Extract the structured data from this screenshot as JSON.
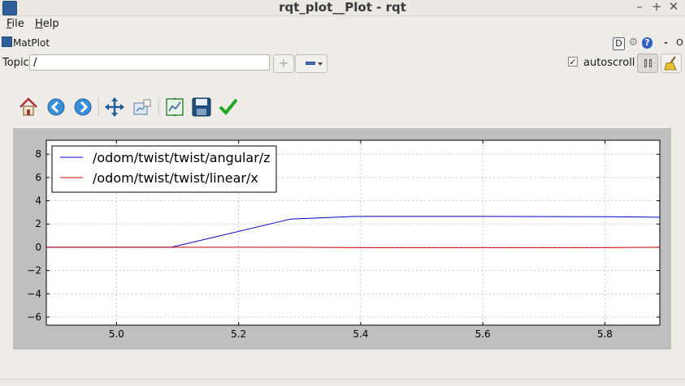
{
  "window": {
    "title": "rqt_plot__Plot - rqt",
    "minimize_glyph": "–",
    "maximize_glyph": "+",
    "close_glyph": "✕"
  },
  "menu": {
    "file_mnemonic": "F",
    "file_rest": "ile",
    "help_mnemonic": "H",
    "help_rest": "elp"
  },
  "dock": {
    "title": "MatPlot",
    "btn_d": "D",
    "btn_minus": "-",
    "btn_o": "O"
  },
  "controls": {
    "topic_label": "Topic",
    "topic_value": "/",
    "add_glyph": "+",
    "autoscroll_checked": true,
    "autoscroll_check_glyph": "✓",
    "autoscroll_label": "autoscroll"
  },
  "toolbar_icons": [
    "home-icon",
    "back-arrow-icon",
    "forward-arrow-icon",
    "pan-icon",
    "configure-subplots-icon",
    "edit-axis-icon",
    "save-icon",
    "apply-checkmark-icon"
  ],
  "colors": {
    "series_angular": "#0000cc",
    "series_linear": "#cc0000",
    "plot_background": "#bfbfbf",
    "window_background": "#efebe7"
  },
  "chart_data": {
    "type": "line",
    "title": "",
    "xlabel": "",
    "ylabel": "",
    "xlim": [
      4.885,
      5.89
    ],
    "ylim": [
      -6.7,
      9.2
    ],
    "xticks": [
      "5.0",
      "5.2",
      "5.4",
      "5.6",
      "5.8"
    ],
    "xtick_values": [
      5.0,
      5.2,
      5.4,
      5.6,
      5.8
    ],
    "yticks": [
      "8",
      "6",
      "4",
      "2",
      "0",
      "−2",
      "−4",
      "−6"
    ],
    "ytick_values": [
      8,
      6,
      4,
      2,
      0,
      -2,
      -4,
      -6
    ],
    "grid": true,
    "legend_position": "top-left",
    "series": [
      {
        "name": "/odom/twist/twist/angular/z",
        "color": "#0000cc",
        "x": [
          4.885,
          5.09,
          5.285,
          5.39,
          5.6,
          5.8,
          5.89
        ],
        "y": [
          0.0,
          0.0,
          2.42,
          2.65,
          2.65,
          2.63,
          2.58
        ]
      },
      {
        "name": "/odom/twist/twist/linear/x",
        "color": "#cc0000",
        "x": [
          4.885,
          5.1,
          5.3,
          5.4,
          5.6,
          5.8,
          5.89
        ],
        "y": [
          0.0,
          0.0,
          0.0,
          -0.03,
          -0.03,
          -0.03,
          0.0
        ]
      }
    ]
  }
}
